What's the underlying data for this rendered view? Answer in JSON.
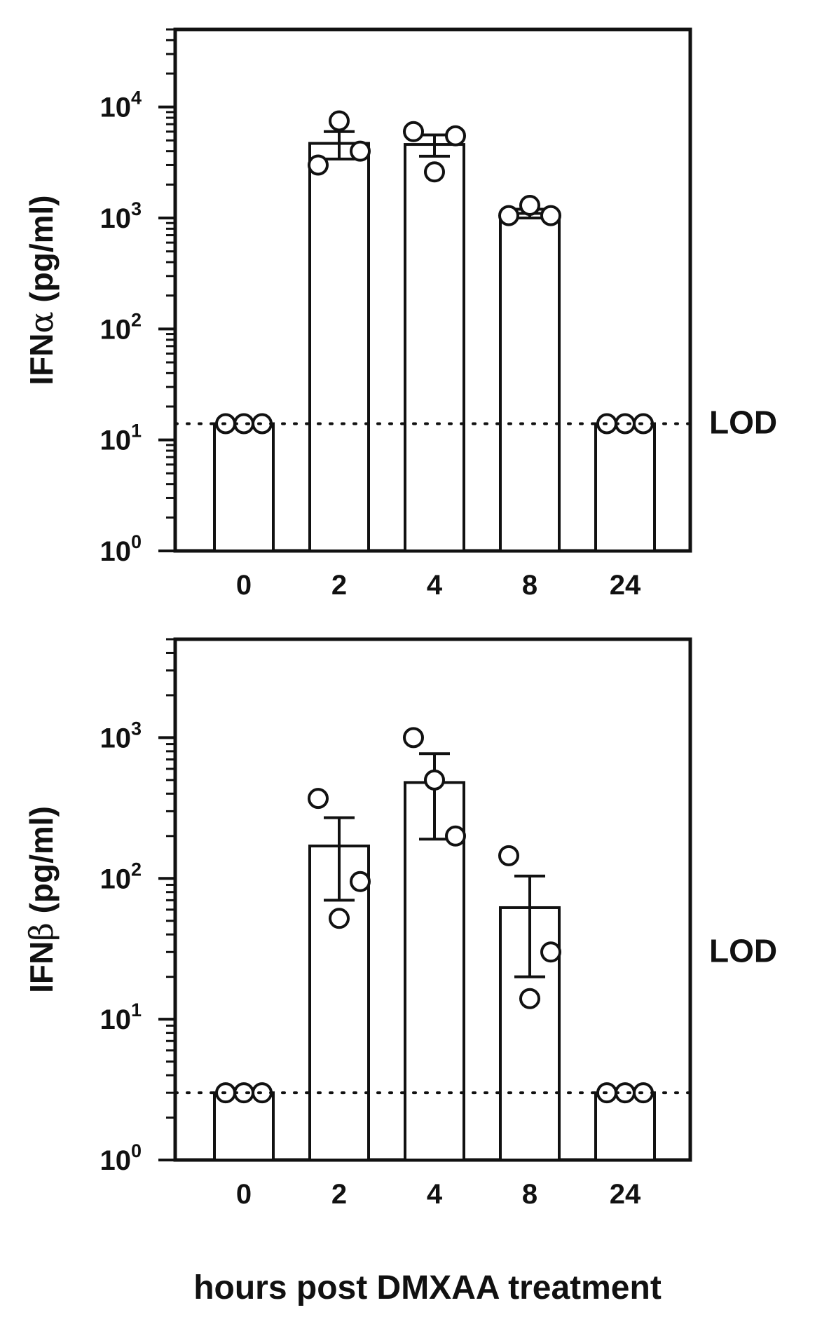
{
  "chart_data": [
    {
      "type": "bar",
      "ylabel_prefix": "IFN",
      "ylabel_greek": "α",
      "ylabel_unit": "(pg/ml)",
      "xlabel": "",
      "yscale": "log",
      "ylim": [
        1,
        50000
      ],
      "categories": [
        "0",
        "2",
        "4",
        "8",
        "24"
      ],
      "values": [
        14,
        4700,
        4600,
        1100,
        14
      ],
      "errors": [
        0,
        1300,
        1000,
        100,
        0
      ],
      "points": [
        [
          14,
          14,
          14
        ],
        [
          3000,
          7500,
          4000
        ],
        [
          6000,
          2600,
          5500
        ],
        [
          1050,
          1300,
          1050
        ],
        [
          14,
          14,
          14
        ]
      ],
      "yticks": [
        {
          "base": "10",
          "exp": "0",
          "value": 1
        },
        {
          "base": "10",
          "exp": "1",
          "value": 10
        },
        {
          "base": "10",
          "exp": "2",
          "value": 100
        },
        {
          "base": "10",
          "exp": "3",
          "value": 1000
        },
        {
          "base": "10",
          "exp": "4",
          "value": 10000
        }
      ],
      "lod_value": 14,
      "lod_label": "LOD",
      "grid": false
    },
    {
      "type": "bar",
      "ylabel_prefix": "IFN",
      "ylabel_greek": "β",
      "ylabel_unit": "(pg/ml)",
      "xlabel": "hours post DMXAA treatment",
      "yscale": "log",
      "ylim": [
        1,
        5000
      ],
      "categories": [
        "0",
        "2",
        "4",
        "8",
        "24"
      ],
      "values": [
        3,
        170,
        480,
        62,
        3
      ],
      "errors": [
        0,
        100,
        290,
        42,
        0
      ],
      "points": [
        [
          3,
          3,
          3
        ],
        [
          370,
          52,
          95
        ],
        [
          1000,
          500,
          200
        ],
        [
          145,
          14,
          30
        ],
        [
          3,
          3,
          3
        ]
      ],
      "yticks": [
        {
          "base": "10",
          "exp": "0",
          "value": 1
        },
        {
          "base": "10",
          "exp": "1",
          "value": 10
        },
        {
          "base": "10",
          "exp": "2",
          "value": 100
        },
        {
          "base": "10",
          "exp": "3",
          "value": 1000
        }
      ],
      "lod_value": 3,
      "lod_label": "LOD",
      "grid": false
    }
  ]
}
